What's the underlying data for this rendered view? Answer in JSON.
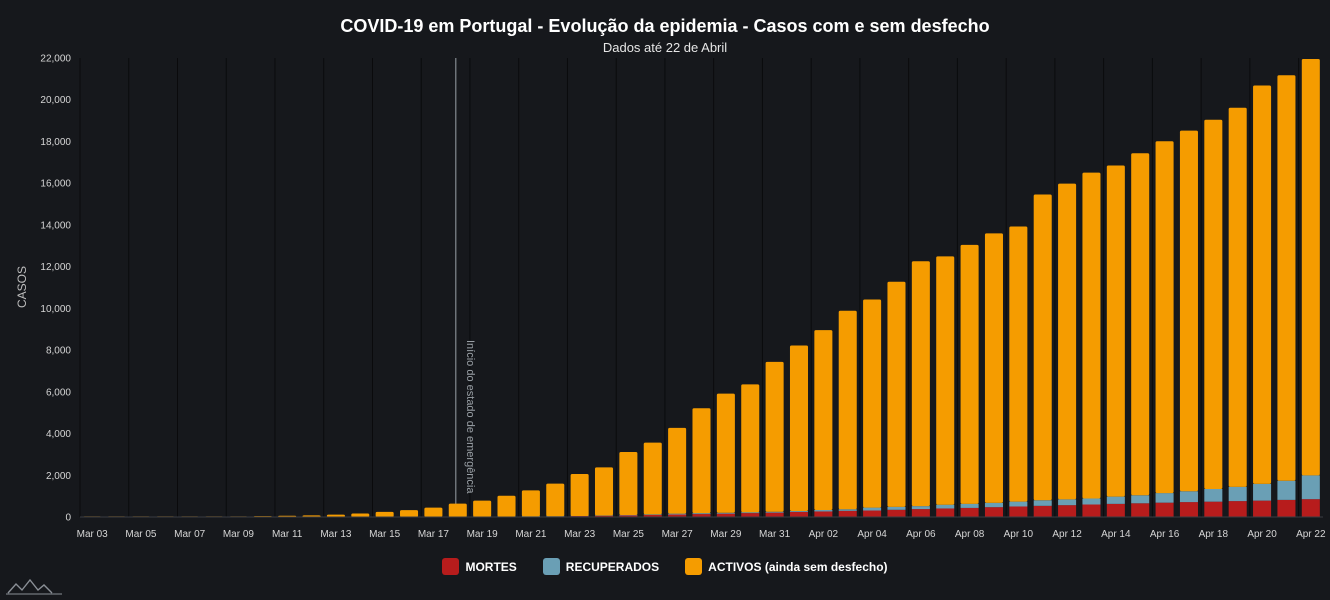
{
  "chart_data": {
    "type": "bar",
    "stacked": true,
    "title": "COVID-19 em Portugal - Evolução da epidemia - Casos com e sem desfecho",
    "subtitle": "Dados até 22 de Abril",
    "ylabel": "CASOS",
    "xlabel": "",
    "ylim": [
      0,
      22000
    ],
    "yticks": [
      0,
      2000,
      4000,
      6000,
      8000,
      10000,
      12000,
      14000,
      16000,
      18000,
      20000,
      22000
    ],
    "ytick_labels": [
      "0",
      "2,000",
      "4,000",
      "6,000",
      "8,000",
      "10,000",
      "12,000",
      "14,000",
      "16,000",
      "18,000",
      "20,000",
      "22,000"
    ],
    "categories": [
      "Mar 03",
      "Mar 04",
      "Mar 05",
      "Mar 06",
      "Mar 07",
      "Mar 08",
      "Mar 09",
      "Mar 10",
      "Mar 11",
      "Mar 12",
      "Mar 13",
      "Mar 14",
      "Mar 15",
      "Mar 16",
      "Mar 17",
      "Mar 18",
      "Mar 19",
      "Mar 20",
      "Mar 21",
      "Mar 22",
      "Mar 23",
      "Mar 24",
      "Mar 25",
      "Mar 26",
      "Mar 27",
      "Mar 28",
      "Mar 29",
      "Mar 30",
      "Mar 31",
      "Apr 01",
      "Apr 02",
      "Apr 03",
      "Apr 04",
      "Apr 05",
      "Apr 06",
      "Apr 07",
      "Apr 08",
      "Apr 09",
      "Apr 10",
      "Apr 11",
      "Apr 12",
      "Apr 13",
      "Apr 14",
      "Apr 15",
      "Apr 16",
      "Apr 17",
      "Apr 18",
      "Apr 19",
      "Apr 20",
      "Apr 21",
      "Apr 22"
    ],
    "xtick_labels": [
      "Mar 03",
      "Mar 05",
      "Mar 07",
      "Mar 09",
      "Mar 11",
      "Mar 13",
      "Mar 15",
      "Mar 17",
      "Mar 19",
      "Mar 21",
      "Mar 23",
      "Mar 25",
      "Mar 27",
      "Mar 29",
      "Mar 31",
      "Apr 02",
      "Apr 04",
      "Apr 06",
      "Apr 08",
      "Apr 10",
      "Apr 12",
      "Apr 14",
      "Apr 16",
      "Apr 18",
      "Apr 20",
      "Apr 22"
    ],
    "series": [
      {
        "name": "MORTES",
        "color": "#b71c1c",
        "values": [
          0,
          0,
          0,
          0,
          0,
          0,
          0,
          0,
          0,
          0,
          0,
          0,
          1,
          2,
          3,
          6,
          12,
          14,
          23,
          33,
          43,
          60,
          76,
          100,
          119,
          140,
          160,
          187,
          209,
          246,
          266,
          295,
          311,
          345,
          380,
          409,
          435,
          470,
          504,
          535,
          567,
          599,
          629,
          657,
          687,
          714,
          735,
          762,
          785,
          820,
          854
        ]
      },
      {
        "name": "RECUPERADOS",
        "color": "#6a9fb5",
        "values": [
          0,
          0,
          0,
          0,
          0,
          0,
          0,
          0,
          0,
          0,
          0,
          0,
          0,
          0,
          0,
          2,
          3,
          3,
          5,
          5,
          5,
          14,
          22,
          25,
          43,
          43,
          43,
          43,
          43,
          43,
          68,
          75,
          140,
          140,
          140,
          180,
          196,
          205,
          233,
          266,
          277,
          287,
          347,
          383,
          459,
          519,
          610,
          683,
          801,
          917,
          1143
        ]
      },
      {
        "name": "ACTIVOS (ainda sem desfecho)",
        "color": "#f59c00",
        "values": [
          2,
          4,
          6,
          9,
          13,
          21,
          30,
          41,
          59,
          78,
          112,
          169,
          244,
          329,
          445,
          634,
          768,
          1003,
          1250,
          1562,
          2014,
          2306,
          3019,
          3439,
          4112,
          5029,
          5710,
          6128,
          7186,
          7929,
          8625,
          9516,
          9974,
          10788,
          11738,
          11904,
          12410,
          12919,
          13188,
          14654,
          15134,
          15620,
          15872,
          16392,
          16862,
          17285,
          17694,
          18170,
          19098,
          19436,
          19957
        ]
      }
    ],
    "annotation": {
      "label": "Início do estado de emergência",
      "x_category": "Mar 18",
      "after_index": 15
    },
    "legend": {
      "position": "bottom-center"
    },
    "grid": {
      "vertical": true,
      "horizontal": false
    }
  }
}
